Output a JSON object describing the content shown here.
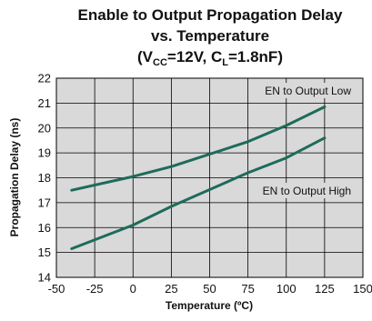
{
  "chart_data": {
    "type": "line",
    "title_line1": "Enable to Output Propagation Delay",
    "title_line2": "vs. Temperature",
    "title_line3_parts": [
      "(V",
      "CC",
      "=12V, C",
      "L",
      "=1.8nF)"
    ],
    "xlabel": "Temperature (ºC)",
    "ylabel": "Propagation Delay (ns)",
    "xlim": [
      -50,
      150
    ],
    "ylim": [
      14,
      22
    ],
    "xticks": [
      -50,
      -25,
      0,
      25,
      50,
      75,
      100,
      125,
      150
    ],
    "yticks": [
      14,
      15,
      16,
      17,
      18,
      19,
      20,
      21,
      22
    ],
    "grid": true,
    "series": [
      {
        "name": "EN to Output Low",
        "x": [
          -40,
          0,
          25,
          75,
          100,
          125
        ],
        "y": [
          17.5,
          18.05,
          18.45,
          19.45,
          20.1,
          20.85
        ],
        "color": "#1e6b5a"
      },
      {
        "name": "EN to Output High",
        "x": [
          -40,
          0,
          25,
          75,
          100,
          125
        ],
        "y": [
          15.15,
          16.1,
          16.85,
          18.2,
          18.8,
          19.6
        ],
        "color": "#1e6b5a"
      }
    ]
  }
}
